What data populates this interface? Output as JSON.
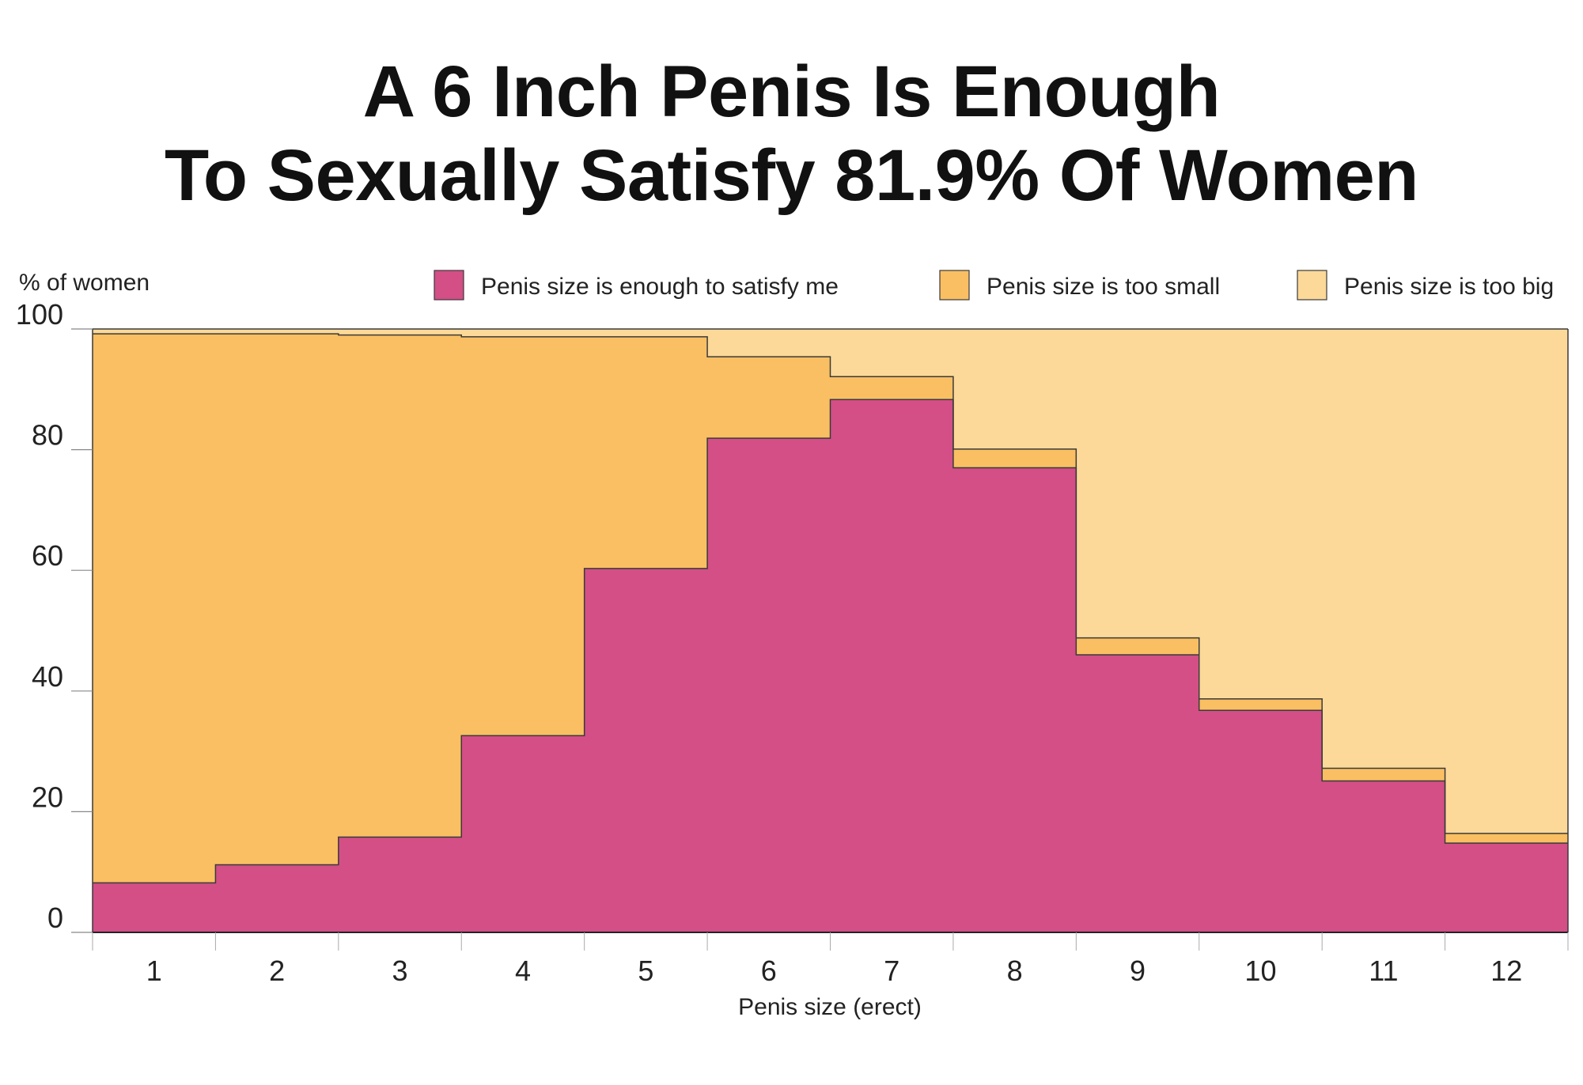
{
  "title_line1": "A 6 Inch Penis Is Enough",
  "title_line2": "To Sexually Satisfy 81.9% Of Women",
  "chart_data": {
    "type": "area",
    "step": true,
    "stacked": true,
    "ylabel": "% of women",
    "xlabel": "Penis size (erect)",
    "ylim": [
      0,
      100
    ],
    "yticks": [
      0,
      20,
      40,
      60,
      80,
      100
    ],
    "categories": [
      "1",
      "2",
      "3",
      "4",
      "5",
      "6",
      "7",
      "8",
      "9",
      "10",
      "11",
      "12"
    ],
    "legend_position": "top-right",
    "series": [
      {
        "name": "Penis size is enough to satisfy me",
        "color": "#d34f86",
        "values": [
          8.2,
          11.2,
          15.8,
          32.6,
          60.3,
          81.9,
          88.3,
          77.0,
          46.0,
          36.8,
          25.1,
          14.8
        ]
      },
      {
        "name": "Penis size is too small",
        "color": "#f9bf62",
        "values": [
          91.0,
          88.0,
          83.2,
          66.1,
          38.4,
          13.5,
          3.8,
          3.1,
          2.8,
          1.9,
          2.1,
          1.6
        ]
      },
      {
        "name": "Penis size is too big",
        "color": "#fcd998",
        "values": [
          0.8,
          0.8,
          1.0,
          1.3,
          1.3,
          4.6,
          7.9,
          19.9,
          51.2,
          61.3,
          72.8,
          83.6
        ]
      }
    ]
  }
}
